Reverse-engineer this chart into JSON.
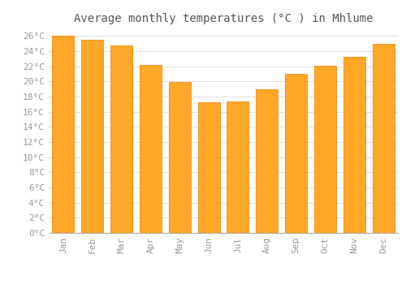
{
  "title": "Average monthly temperatures (°C ) in Mhlume",
  "months": [
    "Jan",
    "Feb",
    "Mar",
    "Apr",
    "May",
    "Jun",
    "Jul",
    "Aug",
    "Sep",
    "Oct",
    "Nov",
    "Dec"
  ],
  "values": [
    26.0,
    25.5,
    24.7,
    22.2,
    19.9,
    17.3,
    17.4,
    19.0,
    21.0,
    22.1,
    23.2,
    25.0
  ],
  "bar_color": "#FFA726",
  "bar_edge_color": "#F57C00",
  "background_color": "#FFFFFF",
  "plot_bg_color": "#FFFFFF",
  "grid_color": "#DDDDDD",
  "ylim": [
    0,
    27
  ],
  "yticks": [
    0,
    2,
    4,
    6,
    8,
    10,
    12,
    14,
    16,
    18,
    20,
    22,
    24,
    26
  ],
  "title_fontsize": 10,
  "tick_fontsize": 8,
  "tick_color": "#999999",
  "title_color": "#555555",
  "bar_width": 0.75
}
